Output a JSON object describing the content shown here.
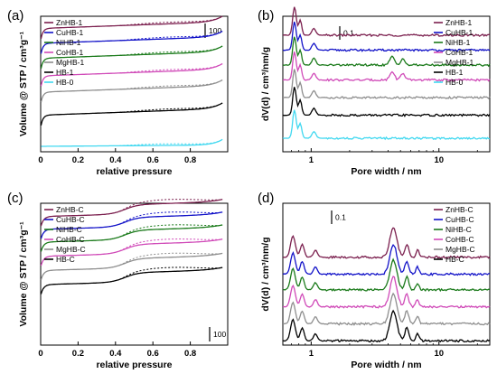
{
  "chart_data": [
    {
      "panel": "(a)",
      "type": "line",
      "xlabel": "relative pressure",
      "ylabel": "Volume @ STP / cm³g⁻¹",
      "xlim": [
        0,
        1.0
      ],
      "xticks": [
        "0",
        "0.2",
        "0.4",
        "0.6",
        "0.8"
      ],
      "xtick_values": [
        0,
        0.2,
        0.4,
        0.6,
        0.8
      ],
      "scale_bar_label": "100",
      "legend_position": "top-left",
      "series": [
        {
          "name": "ZnHB-1",
          "color": "#7b1f4e",
          "offset": 0.82
        },
        {
          "name": "CuHB-1",
          "color": "#1212c8",
          "offset": 0.71
        },
        {
          "name": "NiHB-1",
          "color": "#1a7a1a",
          "offset": 0.6
        },
        {
          "name": "CoHB-1",
          "color": "#d04ab8",
          "offset": 0.47
        },
        {
          "name": "MgHB-1",
          "color": "#8e8e8e",
          "offset": 0.35
        },
        {
          "name": "HB-1",
          "color": "#000000",
          "offset": 0.18
        },
        {
          "name": "HB-0",
          "color": "#40d8f0",
          "offset": 0.02
        }
      ]
    },
    {
      "panel": "(b)",
      "type": "line",
      "xlabel": "Pore width / nm",
      "ylabel": "dV(d) / cm³/nm/g",
      "xscale": "log",
      "xlim": [
        0.6,
        25
      ],
      "xticks": [
        "1",
        "10"
      ],
      "xtick_values": [
        1,
        10
      ],
      "scale_bar_label": "0.1",
      "legend_position": "top-right",
      "series": [
        {
          "name": "ZnHB-1",
          "color": "#7b1f4e",
          "offset": 0.86
        },
        {
          "name": "CuHB-1",
          "color": "#1212c8",
          "offset": 0.75
        },
        {
          "name": "NiHB-1",
          "color": "#1a7a1a",
          "offset": 0.64
        },
        {
          "name": "CoHB-1",
          "color": "#d04ab8",
          "offset": 0.53
        },
        {
          "name": "MgHB-1",
          "color": "#8e8e8e",
          "offset": 0.4
        },
        {
          "name": "HB-1",
          "color": "#000000",
          "offset": 0.27
        },
        {
          "name": "HB-0",
          "color": "#40d8f0",
          "offset": 0.1
        }
      ]
    },
    {
      "panel": "(c)",
      "type": "line",
      "xlabel": "relative pressure",
      "ylabel": "Volume @ STP / cm³g⁻¹",
      "xlim": [
        0,
        1.0
      ],
      "xticks": [
        "0",
        "0.2",
        "0.4",
        "0.6",
        "0.8"
      ],
      "xtick_values": [
        0,
        0.2,
        0.4,
        0.6,
        0.8
      ],
      "scale_bar_label": "100",
      "legend_position": "top-left",
      "series": [
        {
          "name": "ZnHB-C",
          "color": "#7b1f4e",
          "offset": 0.83
        },
        {
          "name": "CuHB-C",
          "color": "#1212c8",
          "offset": 0.74
        },
        {
          "name": "NiHB-C",
          "color": "#1a7a1a",
          "offset": 0.65
        },
        {
          "name": "CoHB-C",
          "color": "#d04ab8",
          "offset": 0.55
        },
        {
          "name": "MgHB-C",
          "color": "#8e8e8e",
          "offset": 0.45
        },
        {
          "name": "HB-C",
          "color": "#000000",
          "offset": 0.35
        }
      ]
    },
    {
      "panel": "(d)",
      "type": "line",
      "xlabel": "Pore width / nm",
      "ylabel": "dV(d) / cm³/nm/g",
      "xscale": "log",
      "xlim": [
        0.6,
        25
      ],
      "xticks": [
        "1",
        "10"
      ],
      "xtick_values": [
        1,
        10
      ],
      "scale_bar_label": "0.1",
      "legend_position": "top-right",
      "series": [
        {
          "name": "ZnHB-C",
          "color": "#7b1f4e",
          "offset": 0.62
        },
        {
          "name": "CuHB-C",
          "color": "#1212c8",
          "offset": 0.5
        },
        {
          "name": "NiHB-C",
          "color": "#1a7a1a",
          "offset": 0.39
        },
        {
          "name": "CoHB-C",
          "color": "#d04ab8",
          "offset": 0.27
        },
        {
          "name": "MgHB-C",
          "color": "#8e8e8e",
          "offset": 0.15
        },
        {
          "name": "HB-C",
          "color": "#000000",
          "offset": 0.03
        }
      ]
    }
  ]
}
